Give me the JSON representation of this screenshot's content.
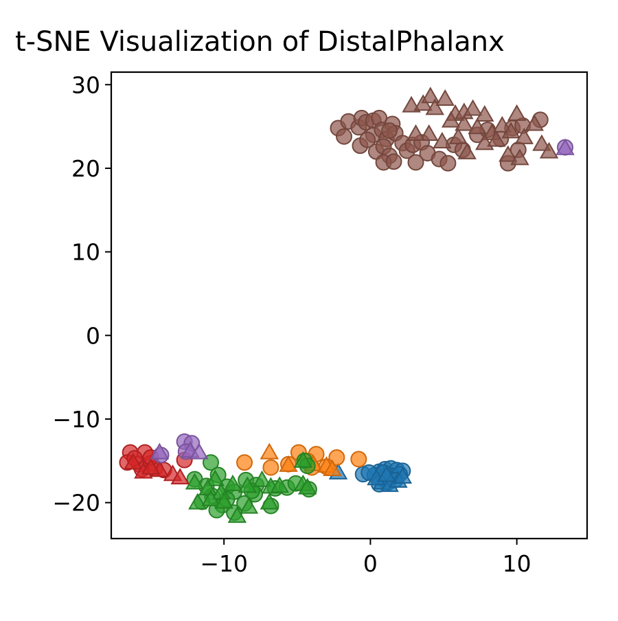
{
  "chart_data": {
    "type": "scatter",
    "title": "t-SNE Visualization of DistalPhalanx",
    "xlabel": "",
    "ylabel": "",
    "xlim": [
      -17.7,
      14.8
    ],
    "ylim": [
      -24.3,
      31.5
    ],
    "xticks": [
      -10,
      0,
      10
    ],
    "yticks": [
      -20,
      -10,
      0,
      10,
      20,
      30
    ],
    "xtick_labels": [
      "−10",
      "0",
      "10"
    ],
    "ytick_labels": [
      "−20",
      "−10",
      "0",
      "10",
      "20",
      "30"
    ],
    "grid": false,
    "legend": "none",
    "marker_note": "circles and triangles",
    "series": [
      {
        "color": "#1f77b4",
        "circles": [
          [
            0.6,
            -16.3
          ],
          [
            1.0,
            -16.0
          ],
          [
            1.4,
            -15.9
          ],
          [
            1.8,
            -16.1
          ],
          [
            2.2,
            -16.2
          ],
          [
            -0.5,
            -16.6
          ],
          [
            0.3,
            -16.7
          ],
          [
            0.9,
            -17.2
          ],
          [
            1.5,
            -16.8
          ],
          [
            2.0,
            -16.6
          ],
          [
            0.6,
            -17.8
          ],
          [
            1.2,
            -17.6
          ],
          [
            -0.1,
            -16.4
          ],
          [
            1.7,
            -17.3
          ],
          [
            0.9,
            -16.4
          ]
        ],
        "triangles": [
          [
            -2.2,
            -16.4
          ],
          [
            0.8,
            -17.6
          ],
          [
            1.3,
            -17.9
          ],
          [
            1.9,
            -17.4
          ],
          [
            2.2,
            -16.9
          ],
          [
            0.4,
            -17.1
          ],
          [
            1.1,
            -16.7
          ]
        ]
      },
      {
        "color": "#ff7f0e",
        "circles": [
          [
            -8.6,
            -15.2
          ],
          [
            -4.9,
            -14.0
          ],
          [
            -3.7,
            -14.2
          ],
          [
            -4.3,
            -15.0
          ],
          [
            -2.3,
            -14.6
          ],
          [
            -0.8,
            -14.8
          ],
          [
            -6.8,
            -15.8
          ],
          [
            -5.6,
            -15.4
          ],
          [
            -3.0,
            -15.7
          ],
          [
            -4.0,
            -15.8
          ]
        ],
        "triangles": [
          [
            -6.9,
            -14.0
          ],
          [
            -5.6,
            -15.5
          ],
          [
            -3.9,
            -15.4
          ],
          [
            -3.0,
            -15.6
          ],
          [
            -2.6,
            -16.0
          ]
        ]
      },
      {
        "color": "#2ca02c",
        "circles": [
          [
            -10.9,
            -15.2
          ],
          [
            -12.0,
            -17.2
          ],
          [
            -11.2,
            -18.0
          ],
          [
            -10.4,
            -16.7
          ],
          [
            -9.8,
            -18.1
          ],
          [
            -9.3,
            -18.7
          ],
          [
            -8.5,
            -17.3
          ],
          [
            -7.8,
            -17.9
          ],
          [
            -6.5,
            -18.3
          ],
          [
            -5.7,
            -18.2
          ],
          [
            -5.1,
            -17.7
          ],
          [
            -4.5,
            -15.0
          ],
          [
            -4.3,
            -15.6
          ],
          [
            -10.8,
            -19.2
          ],
          [
            -10.1,
            -20.3
          ],
          [
            -11.5,
            -19.9
          ],
          [
            -9.3,
            -21.2
          ],
          [
            -8.6,
            -20.1
          ],
          [
            -7.9,
            -19.0
          ],
          [
            -6.8,
            -20.4
          ],
          [
            -4.2,
            -18.4
          ],
          [
            -10.5,
            -20.9
          ],
          [
            -9.8,
            -19.6
          ],
          [
            -8.1,
            -18.6
          ]
        ],
        "triangles": [
          [
            -12.0,
            -17.6
          ],
          [
            -10.6,
            -17.2
          ],
          [
            -11.1,
            -18.3
          ],
          [
            -10.2,
            -18.8
          ],
          [
            -9.4,
            -17.8
          ],
          [
            -8.4,
            -18.0
          ],
          [
            -7.4,
            -17.3
          ],
          [
            -6.8,
            -18.1
          ],
          [
            -6.2,
            -18.0
          ],
          [
            -4.6,
            -17.8
          ],
          [
            -4.3,
            -18.2
          ],
          [
            -11.8,
            -20.0
          ],
          [
            -10.9,
            -19.6
          ],
          [
            -9.1,
            -21.6
          ],
          [
            -8.3,
            -20.5
          ],
          [
            -6.9,
            -20.0
          ],
          [
            -4.6,
            -15.0
          ],
          [
            -10.0,
            -19.9
          ]
        ]
      },
      {
        "color": "#d62728",
        "circles": [
          [
            -16.4,
            -14.0
          ],
          [
            -15.4,
            -14.0
          ],
          [
            -16.6,
            -15.2
          ],
          [
            -15.8,
            -15.4
          ],
          [
            -15.0,
            -15.3
          ],
          [
            -15.6,
            -16.0
          ],
          [
            -14.7,
            -15.9
          ],
          [
            -16.1,
            -14.7
          ],
          [
            -14.1,
            -16.1
          ],
          [
            -15.0,
            -14.6
          ],
          [
            -12.7,
            -14.9
          ]
        ],
        "triangles": [
          [
            -16.2,
            -15.2
          ],
          [
            -15.5,
            -16.3
          ],
          [
            -14.4,
            -16.1
          ],
          [
            -13.5,
            -16.6
          ],
          [
            -13.0,
            -17.0
          ],
          [
            -15.0,
            -15.8
          ]
        ]
      },
      {
        "color": "#9467bd",
        "circles": [
          [
            -12.7,
            -12.7
          ],
          [
            -12.2,
            -12.9
          ],
          [
            -12.6,
            -13.9
          ],
          [
            -14.3,
            -14.3
          ],
          [
            13.3,
            22.5
          ]
        ],
        "triangles": [
          [
            -14.4,
            -14.0
          ],
          [
            -12.3,
            -13.8
          ],
          [
            -11.7,
            -14.0
          ],
          [
            13.3,
            22.4
          ]
        ]
      },
      {
        "color": "#8c564b",
        "circles": [
          [
            -2.2,
            24.8
          ],
          [
            -1.5,
            25.6
          ],
          [
            -1.8,
            23.8
          ],
          [
            -0.8,
            24.9
          ],
          [
            -0.6,
            26.0
          ],
          [
            -0.3,
            25.5
          ],
          [
            0.2,
            25.7
          ],
          [
            0.6,
            26.0
          ],
          [
            -0.7,
            22.7
          ],
          [
            0.2,
            24.0
          ],
          [
            0.8,
            24.6
          ],
          [
            1.1,
            23.5
          ],
          [
            1.5,
            25.3
          ],
          [
            1.7,
            24.2
          ],
          [
            0.4,
            22.0
          ],
          [
            0.9,
            22.6
          ],
          [
            1.3,
            21.5
          ],
          [
            0.9,
            20.7
          ],
          [
            1.6,
            20.8
          ],
          [
            2.2,
            23.0
          ],
          [
            2.5,
            22.1
          ],
          [
            2.9,
            22.8
          ],
          [
            3.5,
            23.1
          ],
          [
            3.1,
            20.7
          ],
          [
            3.9,
            21.8
          ],
          [
            4.7,
            21.1
          ],
          [
            5.3,
            20.6
          ],
          [
            5.7,
            22.8
          ],
          [
            6.3,
            22.2
          ],
          [
            7.3,
            24.0
          ],
          [
            8.0,
            24.6
          ],
          [
            8.9,
            23.5
          ],
          [
            9.7,
            24.8
          ],
          [
            10.4,
            25.1
          ],
          [
            11.6,
            25.8
          ],
          [
            9.4,
            20.6
          ],
          [
            10.1,
            22.2
          ],
          [
            1.3,
            24.5
          ],
          [
            -0.2,
            23.4
          ]
        ],
        "triangles": [
          [
            2.8,
            27.5
          ],
          [
            3.6,
            27.7
          ],
          [
            4.1,
            28.6
          ],
          [
            4.4,
            27.2
          ],
          [
            5.1,
            28.3
          ],
          [
            5.8,
            26.5
          ],
          [
            6.4,
            26.7
          ],
          [
            7.0,
            27.1
          ],
          [
            5.5,
            25.7
          ],
          [
            6.4,
            25.3
          ],
          [
            7.3,
            24.9
          ],
          [
            7.8,
            26.4
          ],
          [
            8.3,
            24.2
          ],
          [
            9.0,
            25.1
          ],
          [
            9.6,
            24.4
          ],
          [
            10.0,
            26.5
          ],
          [
            10.5,
            23.7
          ],
          [
            11.2,
            25.3
          ],
          [
            11.7,
            22.9
          ],
          [
            12.2,
            22.0
          ],
          [
            7.8,
            23.0
          ],
          [
            8.6,
            23.4
          ],
          [
            9.4,
            21.6
          ],
          [
            10.2,
            21.2
          ],
          [
            6.6,
            21.9
          ],
          [
            4.9,
            23.2
          ],
          [
            4.0,
            24.1
          ],
          [
            3.1,
            24.1
          ],
          [
            6.0,
            23.7
          ]
        ]
      }
    ]
  }
}
